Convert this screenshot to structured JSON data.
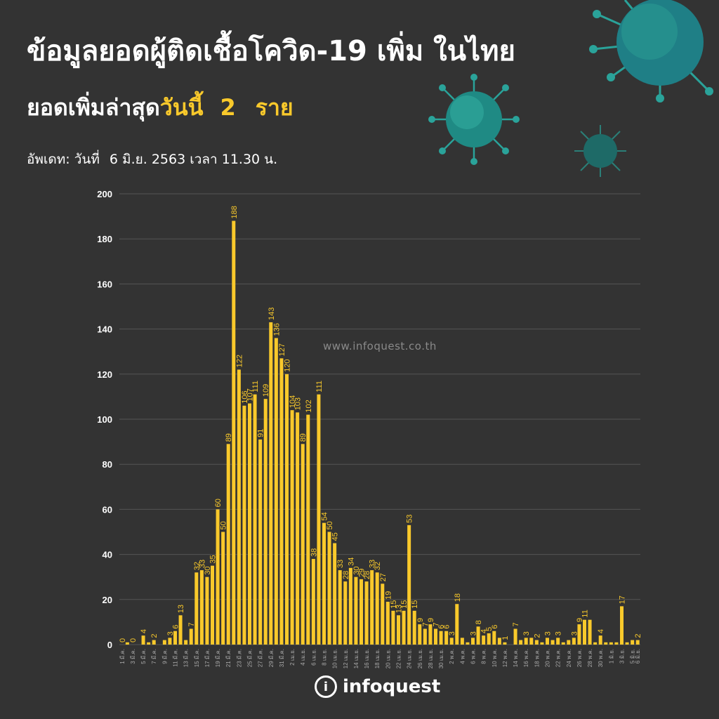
{
  "title": "ข้อมูลยอดผู้ติดเชื้อโควิด-19 เพิ่ม ในไทย",
  "subtitle": {
    "lead": "ยอดเพิ่มล่าสุด",
    "highlight": "วันนี้",
    "count": "2",
    "unit": "ราย"
  },
  "update": {
    "label": "อัพเดท: วันที่",
    "value": "6 มิ.ย. 2563 เวลา 11.30 น."
  },
  "watermark": "www.infoquest.co.th",
  "logo": {
    "mark": "i",
    "text": "infoquest"
  },
  "colors": {
    "background": "#333333",
    "bar": "#f9c92b",
    "grid": "#555555",
    "text": "#ffffff",
    "highlight": "#f9c92b"
  },
  "chart_data": {
    "type": "bar",
    "title": "",
    "xlabel": "",
    "ylabel": "",
    "ylim": [
      0,
      200
    ],
    "yticks": [
      "0",
      "20",
      "40",
      "60",
      "80",
      "100",
      "120",
      "140",
      "160",
      "180",
      "200"
    ],
    "grid": true,
    "categories": [
      "1 มี.ค.",
      "2 มี.ค.",
      "3 มี.ค.",
      "4 มี.ค.",
      "5 มี.ค.",
      "6 มี.ค.",
      "7 มี.ค.",
      "8 มี.ค.",
      "9 มี.ค.",
      "10 มี.ค.",
      "11 มี.ค.",
      "12 มี.ค.",
      "13 มี.ค.",
      "14 มี.ค.",
      "15 มี.ค.",
      "16 มี.ค.",
      "17 มี.ค.",
      "18 มี.ค.",
      "19 มี.ค.",
      "20 มี.ค.",
      "21 มี.ค.",
      "22 มี.ค.",
      "23 มี.ค.",
      "24 มี.ค.",
      "25 มี.ค.",
      "26 มี.ค.",
      "27 มี.ค.",
      "28 มี.ค.",
      "29 มี.ค.",
      "30 มี.ค.",
      "31 มี.ค.",
      "1 เม.ย.",
      "2 เม.ย.",
      "3 เม.ย.",
      "4 เม.ย.",
      "5 เม.ย.",
      "6 เม.ย.",
      "7 เม.ย.",
      "8 เม.ย.",
      "9 เม.ย.",
      "10 เม.ย.",
      "11 เม.ย.",
      "12 เม.ย.",
      "13 เม.ย.",
      "14 เม.ย.",
      "15 เม.ย.",
      "16 เม.ย.",
      "17 เม.ย.",
      "18 เม.ย.",
      "19 เม.ย.",
      "20 เม.ย.",
      "21 เม.ย.",
      "22 เม.ย.",
      "23 เม.ย.",
      "24 เม.ย.",
      "25 เม.ย.",
      "26 เม.ย.",
      "27 เม.ย.",
      "28 เม.ย.",
      "29 เม.ย.",
      "30 เม.ย.",
      "1 พ.ค.",
      "2 พ.ค.",
      "3 พ.ค.",
      "4 พ.ค.",
      "5 พ.ค.",
      "6 พ.ค.",
      "7 พ.ค.",
      "8 พ.ค.",
      "9 พ.ค.",
      "10 พ.ค.",
      "11 พ.ค.",
      "12 พ.ค.",
      "13 พ.ค.",
      "14 พ.ค.",
      "15 พ.ค.",
      "16 พ.ค.",
      "17 พ.ค.",
      "18 พ.ค.",
      "19 พ.ค.",
      "20 พ.ค.",
      "21 พ.ค.",
      "22 พ.ค.",
      "23 พ.ค.",
      "24 พ.ค.",
      "25 พ.ค.",
      "26 พ.ค.",
      "27 พ.ค.",
      "28 พ.ค.",
      "29 พ.ค.",
      "30 พ.ค.",
      "31 พ.ค.",
      "1 มิ.ย.",
      "2 มิ.ย.",
      "3 มิ.ย.",
      "4 มิ.ย.",
      "5 มิ.ย.",
      "6 มิ.ย."
    ],
    "values": [
      0,
      1,
      0,
      0,
      4,
      1,
      2,
      0,
      2,
      3,
      6,
      13,
      2,
      7,
      32,
      33,
      30,
      35,
      60,
      50,
      89,
      188,
      122,
      106,
      107,
      111,
      91,
      109,
      143,
      136,
      127,
      120,
      104,
      103,
      89,
      102,
      38,
      111,
      54,
      50,
      45,
      33,
      28,
      34,
      30,
      29,
      28,
      33,
      32,
      27,
      19,
      15,
      13,
      15,
      53,
      15,
      9,
      7,
      9,
      7,
      6,
      6,
      3,
      18,
      3,
      1,
      3,
      8,
      4,
      5,
      6,
      3,
      1,
      0,
      7,
      2,
      3,
      3,
      2,
      1,
      3,
      2,
      3,
      1,
      2,
      3,
      9,
      11,
      11,
      1,
      4,
      1,
      1,
      1,
      17,
      1,
      2,
      2
    ],
    "labels": [
      "0",
      "",
      "0",
      "",
      "4",
      "",
      "2",
      "",
      "",
      "3",
      "6",
      "13",
      "",
      "7",
      "32",
      "33",
      "30",
      "35",
      "60",
      "50",
      "89",
      "188",
      "122",
      "106",
      "107",
      "111",
      "91",
      "109",
      "143",
      "136",
      "127",
      "120",
      "104",
      "103",
      "89",
      "102",
      "38",
      "111",
      "54",
      "50",
      "45",
      "33",
      "28",
      "34",
      "30",
      "29",
      "28",
      "33",
      "32",
      "27",
      "19",
      "15",
      "13",
      "15",
      "53",
      "15",
      "9",
      "7",
      "9",
      "7",
      "6",
      "6",
      "3",
      "18",
      "",
      "",
      "3",
      "8",
      "4",
      "5",
      "6",
      "",
      "1",
      "",
      "7",
      "",
      "3",
      "",
      "2",
      "",
      "3",
      "",
      "3",
      "",
      "",
      "3",
      "9",
      "11",
      "",
      "",
      "4",
      "",
      "",
      "",
      "17",
      "",
      "",
      "2"
    ],
    "tick_labels": [
      "1 มี.ค.",
      "3 มี.ค.",
      "5 มี.ค.",
      "7 มี.ค.",
      "9 มี.ค.",
      "11 มี.ค.",
      "13 มี.ค.",
      "15 มี.ค.",
      "17 มี.ค.",
      "19 มี.ค.",
      "21 มี.ค.",
      "23 มี.ค.",
      "25 มี.ค.",
      "27 มี.ค.",
      "29 มี.ค.",
      "31 มี.ค.",
      "2 เม.ย.",
      "4 เม.ย.",
      "6 เม.ย.",
      "8 เม.ย.",
      "10 เม.ย.",
      "12 เม.ย.",
      "14 เม.ย.",
      "16 เม.ย.",
      "18 เม.ย.",
      "20 เม.ย.",
      "22 เม.ย.",
      "24 เม.ย.",
      "26 เม.ย.",
      "28 เม.ย.",
      "30 เม.ย.",
      "2 พ.ค.",
      "4 พ.ค.",
      "6 พ.ค.",
      "8 พ.ค.",
      "10 พ.ค.",
      "12 พ.ค.",
      "14 พ.ค.",
      "16 พ.ค.",
      "18 พ.ค.",
      "20 พ.ค.",
      "22 พ.ค.",
      "24 พ.ค.",
      "26 พ.ค.",
      "28 พ.ค.",
      "30 พ.ค.",
      "1 มิ.ย.",
      "3 มิ.ย.",
      "5 มิ.ย.",
      "6 มิ.ย."
    ]
  }
}
